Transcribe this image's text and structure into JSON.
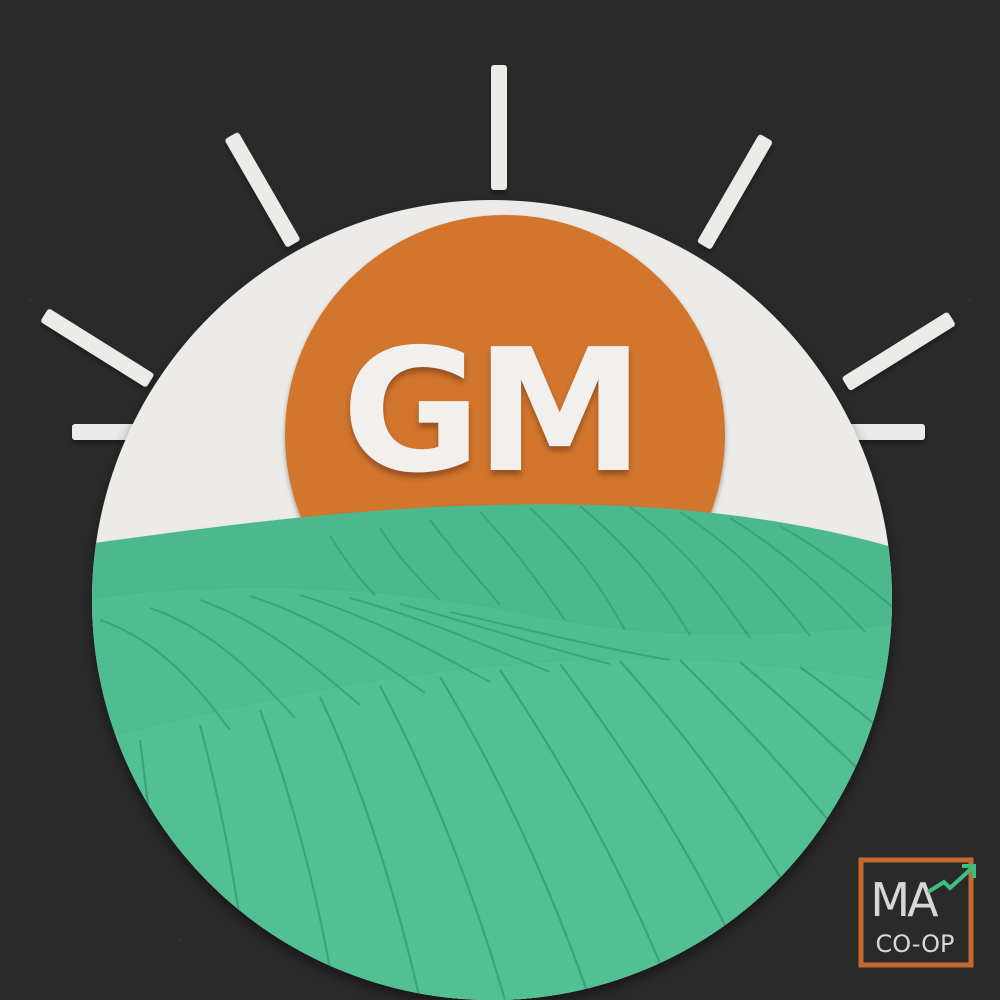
{
  "logo": {
    "monogram": "GM",
    "colors": {
      "background": "#2b2a2a",
      "paper": "#ecebe8",
      "sun": "#d2762f",
      "field": "#4cb98d",
      "field_line": "#2f8e69",
      "monogram": "#f1f0ec"
    }
  },
  "badge": {
    "mark": "MA",
    "label": "CO-OP",
    "colors": {
      "frame": "#c46a2d",
      "text": "#d8d8d8",
      "accent": "#3fbf7f"
    }
  }
}
